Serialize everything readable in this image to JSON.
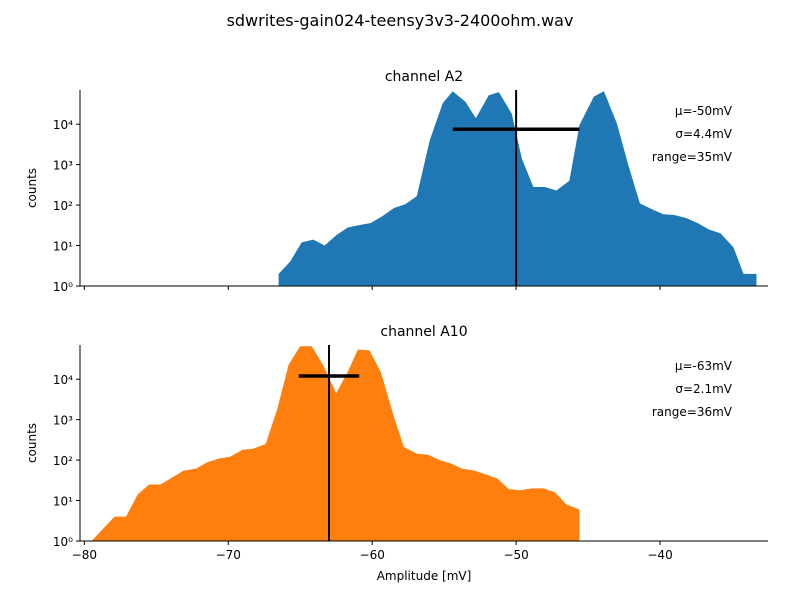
{
  "title": "sdwrites-gain024-teensy3v3-2400ohm.wav",
  "chart_data": [
    {
      "type": "area",
      "title": "channel A2",
      "ylabel": "counts",
      "color": "#1f77b4",
      "log_y": true,
      "x": [
        -66.5,
        -65.7,
        -64.9,
        -64.1,
        -63.3,
        -62.5,
        -61.7,
        -60.9,
        -60.1,
        -59.3,
        -58.5,
        -57.7,
        -56.9,
        -56.0,
        -55.1,
        -54.4,
        -53.5,
        -52.8,
        -51.9,
        -51.2,
        -50.3,
        -49.6,
        -48.8,
        -48.0,
        -47.2,
        -46.3,
        -45.6,
        -44.6,
        -43.9,
        -43.0,
        -42.2,
        -41.4,
        -40.6,
        -39.8,
        -39.0,
        -38.2,
        -37.4,
        -36.6,
        -35.8,
        -34.9,
        -34.2,
        -33.3
      ],
      "values": [
        2,
        4,
        12,
        14,
        10,
        18,
        28,
        32,
        36,
        53,
        84,
        105,
        167,
        4000,
        33000,
        65000,
        35000,
        14000,
        52000,
        62000,
        18000,
        1400,
        280,
        280,
        230,
        400,
        9500,
        48000,
        65000,
        10500,
        960,
        110,
        80,
        60,
        57,
        48,
        36,
        25,
        20,
        9,
        2,
        2
      ],
      "mean": -50,
      "sigma": 4.4,
      "errorbar_y": 7500,
      "annotations": [
        "μ=-50mV",
        "σ=4.4mV",
        "range=35mV"
      ],
      "xlim": [
        -80.3,
        -32.5
      ],
      "ylim": [
        1,
        70000
      ],
      "xticks": [
        -80,
        -70,
        -60,
        -50,
        -40
      ],
      "yticks": [
        {
          "value": 1,
          "label": "10⁰"
        },
        {
          "value": 10,
          "label": "10¹"
        },
        {
          "value": 100,
          "label": "10²"
        },
        {
          "value": 1000,
          "label": "10³"
        },
        {
          "value": 10000,
          "label": "10⁴"
        }
      ]
    },
    {
      "type": "area",
      "title": "channel A10",
      "ylabel": "counts",
      "xlabel": "Amplitude [mV]",
      "color": "#ff7f0e",
      "log_y": true,
      "x": [
        -79.5,
        -78.7,
        -77.9,
        -77.1,
        -76.3,
        -75.5,
        -74.7,
        -73.9,
        -73.1,
        -72.2,
        -71.5,
        -70.6,
        -69.9,
        -69.0,
        -68.3,
        -67.4,
        -66.6,
        -65.8,
        -65.0,
        -64.2,
        -63.4,
        -62.5,
        -61.7,
        -61.0,
        -60.2,
        -59.4,
        -58.5,
        -57.8,
        -56.9,
        -56.1,
        -55.3,
        -54.5,
        -53.8,
        -52.9,
        -52.1,
        -51.3,
        -50.5,
        -49.7,
        -48.9,
        -48.1,
        -47.3,
        -46.5,
        -45.6
      ],
      "values": [
        1,
        2,
        4,
        4,
        14,
        25,
        25,
        37,
        55,
        62,
        87,
        110,
        120,
        180,
        190,
        250,
        1800,
        23000,
        65000,
        65000,
        22000,
        4500,
        15000,
        54000,
        52000,
        15000,
        1200,
        210,
        145,
        135,
        100,
        82,
        62,
        55,
        44,
        35,
        19,
        18,
        20,
        20,
        16,
        8,
        6
      ],
      "mean": -63,
      "sigma": 2.1,
      "errorbar_y": 12000,
      "annotations": [
        "μ=-63mV",
        "σ=2.1mV",
        "range=36mV"
      ],
      "xlim": [
        -80.3,
        -32.5
      ],
      "ylim": [
        1,
        70000
      ],
      "xticks": [
        {
          "value": -80,
          "label": "−80"
        },
        {
          "value": -70,
          "label": "−70"
        },
        {
          "value": -60,
          "label": "−60"
        },
        {
          "value": -50,
          "label": "−50"
        },
        {
          "value": -40,
          "label": "−40"
        }
      ],
      "yticks": [
        {
          "value": 1,
          "label": "10⁰"
        },
        {
          "value": 10,
          "label": "10¹"
        },
        {
          "value": 100,
          "label": "10²"
        },
        {
          "value": 1000,
          "label": "10³"
        },
        {
          "value": 10000,
          "label": "10⁴"
        }
      ]
    }
  ]
}
